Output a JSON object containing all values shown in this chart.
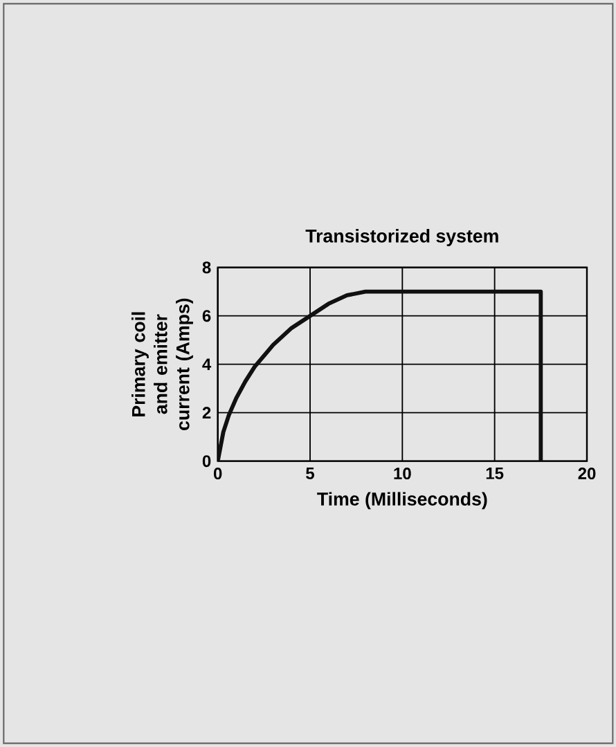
{
  "chart_data": {
    "type": "line",
    "title": "Transistorized system",
    "xlabel": "Time (Milliseconds)",
    "ylabel": "Primary coil and emitter current (Amps)",
    "x": [
      0,
      0.3,
      0.6,
      1,
      1.5,
      2,
      3,
      4,
      5,
      6,
      7,
      8,
      17.5,
      17.5
    ],
    "series": [
      {
        "color": "#111111",
        "values": [
          0,
          1.2,
          1.9,
          2.6,
          3.3,
          3.9,
          4.8,
          5.5,
          6.0,
          6.5,
          6.85,
          7,
          7,
          0
        ]
      }
    ],
    "xlim": [
      0,
      20
    ],
    "ylim": [
      0,
      8
    ],
    "xticks": [
      0,
      5,
      10,
      15,
      20
    ],
    "yticks": [
      0,
      2,
      4,
      6,
      8
    ],
    "grid": true,
    "marker": "none",
    "line_style": "solid"
  }
}
